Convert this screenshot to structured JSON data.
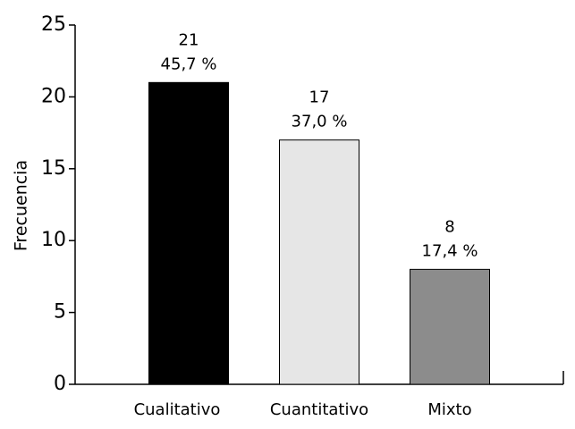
{
  "chart_data": {
    "type": "bar",
    "ylabel": "Frecuencia",
    "categories": [
      "Cualitativo",
      "Cuantitativo",
      "Mixto"
    ],
    "values": [
      21,
      17,
      8
    ],
    "shares": [
      "45,7 %",
      "37,0 %",
      "17,4 %"
    ],
    "colors": [
      "#000000",
      "#e6e6e6",
      "#8c8c8c"
    ],
    "ylim": [
      0,
      25
    ],
    "yticks": [
      0,
      5,
      10,
      15,
      20,
      25
    ],
    "grid": false
  }
}
